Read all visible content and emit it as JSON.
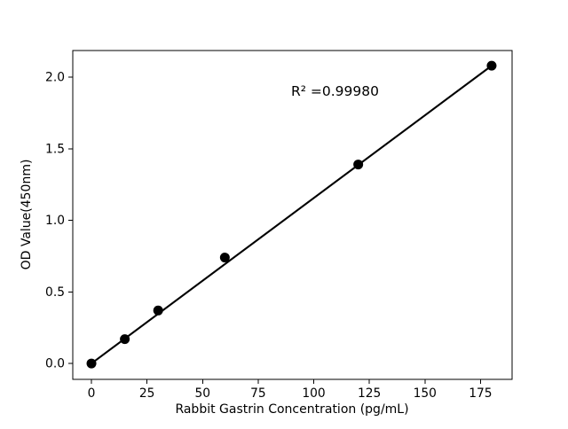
{
  "figure": {
    "background": "#ffffff",
    "foreground": "#000000"
  },
  "chart_data": {
    "type": "scatter",
    "title": "",
    "xlabel": "Rabbit Gastrin Concentration (pg/mL)",
    "ylabel": "OD Value(450nm)",
    "series": [
      {
        "name": "standard-curve",
        "x": [
          0,
          15,
          30,
          60,
          120,
          180
        ],
        "y": [
          0.0,
          0.17,
          0.37,
          0.74,
          1.39,
          2.08
        ],
        "marker": "circle",
        "marker_color": "#000000",
        "line_color": "#000000",
        "fit_line": true
      }
    ],
    "annotation": {
      "text": "R² =0.99980",
      "x_data": 90,
      "y_data": 1.88
    },
    "xlim": [
      -8.4,
      189.2
    ],
    "ylim": [
      -0.111,
      2.186
    ],
    "xticks": [
      0,
      25,
      50,
      75,
      100,
      125,
      150,
      175
    ],
    "xtick_labels": [
      "0",
      "25",
      "50",
      "75",
      "100",
      "125",
      "150",
      "175"
    ],
    "yticks": [
      0.0,
      0.5,
      1.0,
      1.5,
      2.0
    ],
    "ytick_labels": [
      "0.0",
      "0.5",
      "1.0",
      "1.5",
      "2.0"
    ],
    "grid": false,
    "legend": "none"
  }
}
